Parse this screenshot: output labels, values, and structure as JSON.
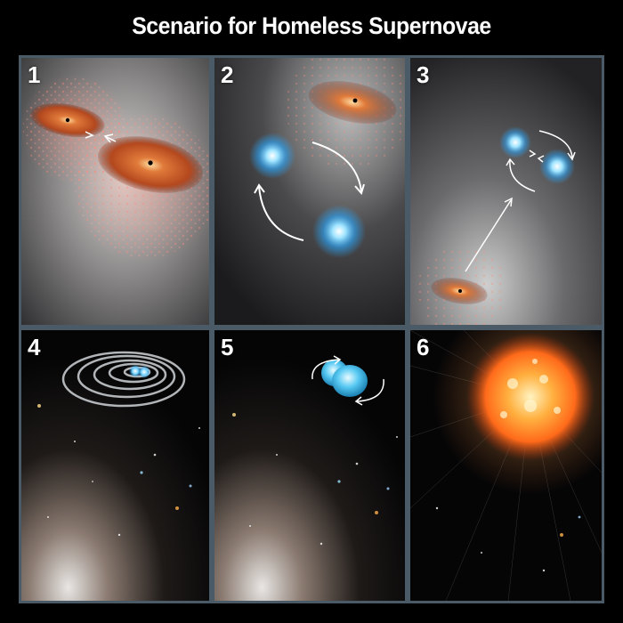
{
  "title": "Scenario for Homeless Supernovae",
  "panels": [
    {
      "number": "1"
    },
    {
      "number": "2"
    },
    {
      "number": "3"
    },
    {
      "number": "4"
    },
    {
      "number": "5"
    },
    {
      "number": "6"
    }
  ],
  "colors": {
    "background": "#000000",
    "frame": "#4a5a66",
    "galaxy_disk": "#c0502a",
    "blue_star": "#4fc3ff",
    "supernova": "#ff8a2a"
  }
}
